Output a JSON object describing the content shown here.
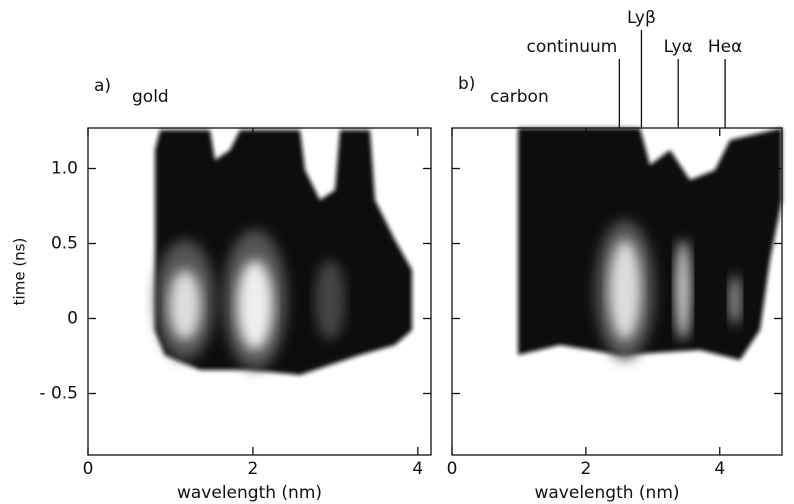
{
  "chart_data": [
    {
      "type": "image",
      "panel_label": "a)",
      "title": "gold",
      "x_label": "wavelength (nm)",
      "y_label": "time (ns)",
      "xlim": [
        0,
        4.16
      ],
      "ylim": [
        -0.91,
        1.27
      ],
      "xticks": [
        0,
        2,
        4
      ],
      "yticks": [
        {
          "value": 1,
          "label": "1.0"
        },
        0.5,
        0,
        {
          "value": -0.5,
          "label": "- 0.5"
        }
      ]
    },
    {
      "type": "image",
      "panel_label": "b)",
      "title": "carbon",
      "x_label": "wavelength (nm)",
      "xlim": [
        0,
        4.93
      ],
      "ylim": [
        -0.91,
        1.27
      ],
      "xticks": [
        0,
        2,
        4
      ],
      "yticks": [
        1,
        0.5,
        0,
        -0.5
      ],
      "annotations": [
        {
          "text": "continuum",
          "x": 2.5
        },
        {
          "text": "Lyβ",
          "x": 2.83
        },
        {
          "text": "Lyα",
          "x": 3.38
        },
        {
          "text": "Heα",
          "x": 4.08
        }
      ]
    }
  ]
}
